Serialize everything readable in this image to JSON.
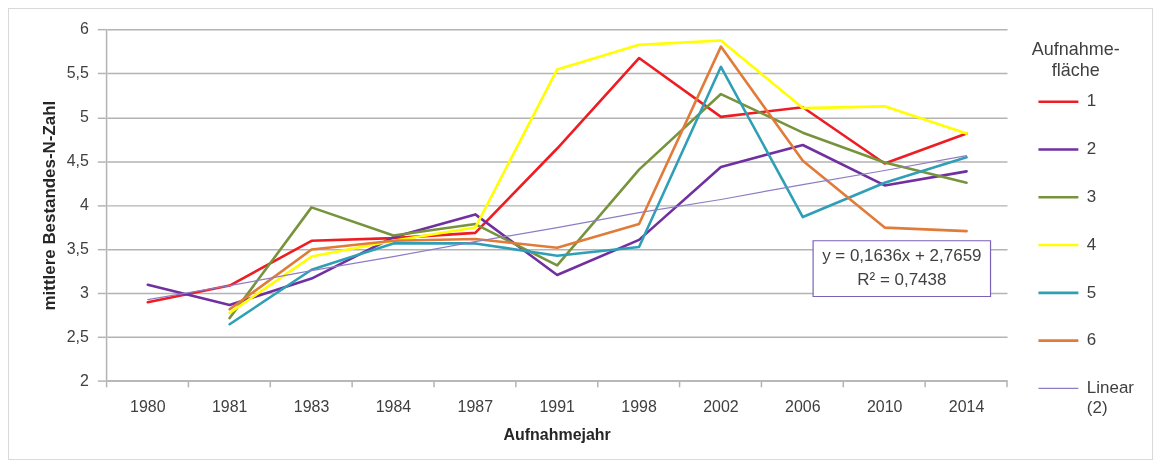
{
  "chart_data": {
    "type": "line",
    "xlabel": "Aufnahmejahr",
    "ylabel": "mittlere Bestandes-N-Zahl",
    "legend_title": "Aufnahme-fläche",
    "categories": [
      "1980",
      "1981",
      "1983",
      "1984",
      "1987",
      "1991",
      "1998",
      "2002",
      "2006",
      "2010",
      "2014"
    ],
    "series": [
      {
        "name": "1",
        "color": "#ee1d23",
        "values": [
          2.9,
          3.09,
          3.6,
          3.63,
          3.69,
          4.65,
          5.68,
          5.01,
          5.12,
          4.48,
          4.82
        ]
      },
      {
        "name": "2",
        "color": "#7030a0",
        "values": [
          3.1,
          2.87,
          3.17,
          3.64,
          3.9,
          3.21,
          3.61,
          4.44,
          4.69,
          4.23,
          4.39
        ]
      },
      {
        "name": "3",
        "color": "#77933c",
        "values": [
          null,
          2.72,
          3.98,
          3.66,
          3.79,
          3.32,
          4.41,
          5.27,
          4.83,
          4.49,
          4.26
        ]
      },
      {
        "name": "4",
        "color": "#ffff00",
        "values": [
          null,
          2.78,
          3.42,
          3.6,
          3.75,
          5.55,
          5.83,
          5.88,
          5.11,
          5.13,
          4.82
        ]
      },
      {
        "name": "5",
        "color": "#2f9fb5",
        "values": [
          null,
          2.65,
          3.27,
          3.57,
          3.57,
          3.43,
          3.53,
          5.58,
          3.87,
          4.26,
          4.55
        ]
      },
      {
        "name": "6",
        "color": "#e07b39",
        "values": [
          null,
          2.82,
          3.5,
          3.6,
          3.62,
          3.52,
          3.79,
          5.81,
          4.51,
          3.75,
          3.71
        ]
      },
      {
        "name": "Linear (2)",
        "type": "line",
        "color": "#8f7cc4",
        "values": [
          2.93,
          3.09,
          3.26,
          3.42,
          3.59,
          3.75,
          3.92,
          4.07,
          4.24,
          4.4,
          4.57
        ]
      }
    ],
    "ylim": [
      2,
      6
    ],
    "yticks": [
      2,
      {
        "value": 2.5,
        "label": "2,5"
      },
      3,
      {
        "value": 3.5,
        "label": "3,5"
      },
      4,
      {
        "value": 4.5,
        "label": "4,5"
      },
      5,
      {
        "value": 5.5,
        "label": "5,5"
      },
      6
    ],
    "grid": "y",
    "legend": "right",
    "marker": "none",
    "annotations": [
      "y = 0,1636x + 2,7659",
      "R² = 0,7438"
    ]
  }
}
